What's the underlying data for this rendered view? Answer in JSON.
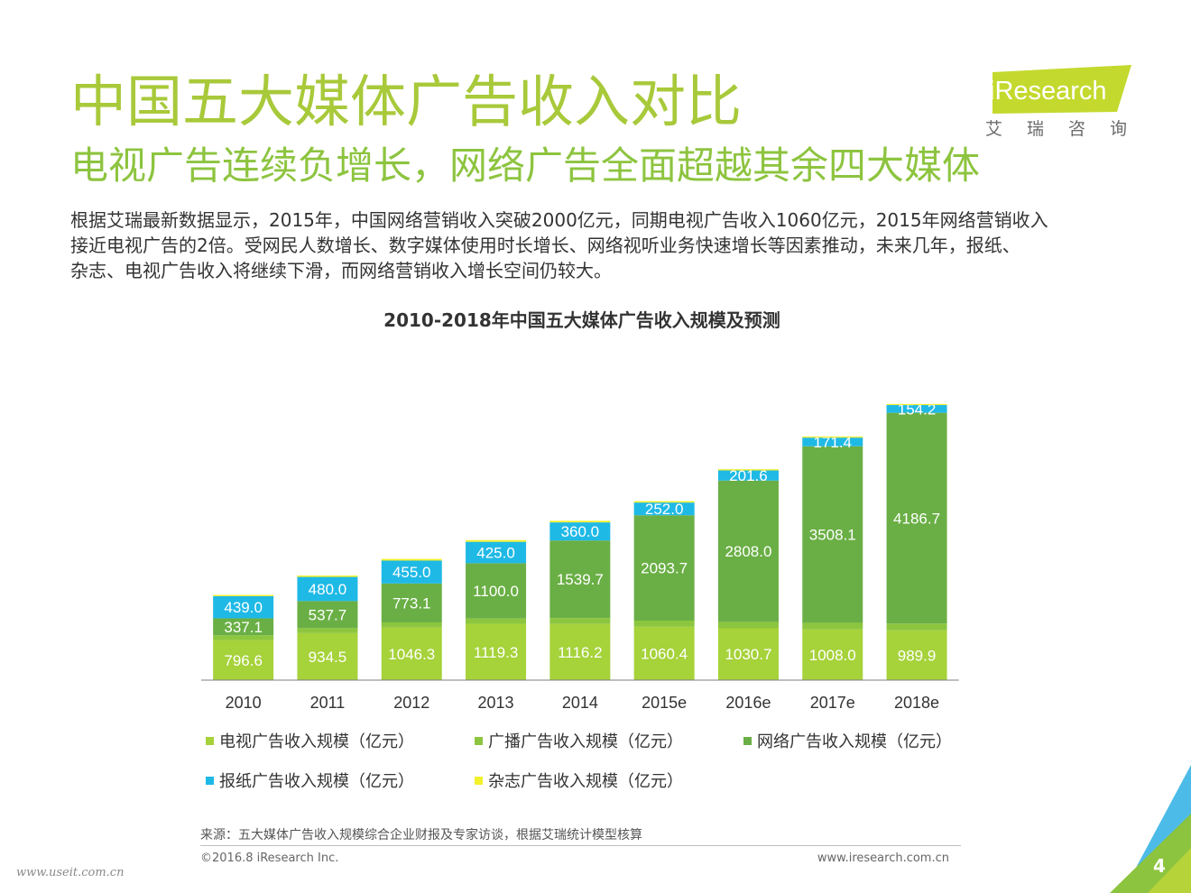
{
  "header": {
    "title": "中国五大媒体广告收入对比",
    "subtitle": "电视广告连续负增长，网络广告全面超越其余四大媒体"
  },
  "logo": {
    "brand": "iResearch",
    "brand_cn": "艾瑞咨询"
  },
  "description": {
    "lines": [
      "根据艾瑞最新数据显示，2015年，中国网络营销收入突破2000亿元，同期电视广告收入1060亿元，2015年网络营销收入",
      "接近电视广告的2倍。受网民人数增长、数字媒体使用时长增长、网络视听业务快速增长等因素推动，未来几年，报纸、",
      "杂志、电视广告收入将继续下滑，而网络营销收入增长空间仍较大。"
    ]
  },
  "chart_data": {
    "type": "bar",
    "stacked": true,
    "title": "2010-2018年中国五大媒体广告收入规模及预测",
    "categories": [
      "2010",
      "2011",
      "2012",
      "2013",
      "2014",
      "2015e",
      "2016e",
      "2017e",
      "2018e"
    ],
    "series": [
      {
        "name": "电视广告收入规模（亿元）",
        "color": "#a6d23a",
        "show_labels": true,
        "values": [
          796.6,
          934.5,
          1046.3,
          1119.3,
          1116.2,
          1060.4,
          1030.7,
          1008.0,
          989.9
        ]
      },
      {
        "name": "广播广告收入规模（亿元）",
        "color": "#8cc63f",
        "show_labels": false,
        "values": [
          94.6,
          98.7,
          101.0,
          104.1,
          118.7,
          122.5,
          126.8,
          131.2,
          135.6
        ]
      },
      {
        "name": "网络广告收入规模（亿元）",
        "color": "#6aaf45",
        "show_labels": true,
        "values": [
          337.1,
          537.7,
          773.1,
          1100.0,
          1539.7,
          2093.7,
          2808.0,
          3508.1,
          4186.7
        ]
      },
      {
        "name": "报纸广告收入规模（亿元）",
        "color": "#1fb9e6",
        "show_labels": true,
        "values": [
          439.0,
          480.0,
          455.0,
          425.0,
          360.0,
          252.0,
          201.6,
          171.4,
          154.2
        ]
      },
      {
        "name": "杂志广告收入规模（亿元）",
        "color": "#f3f02c",
        "show_labels": false,
        "values": [
          25.0,
          28.0,
          33.0,
          35.0,
          32.0,
          28.0,
          25.0,
          23.0,
          21.0
        ]
      }
    ],
    "xlabel": "",
    "ylabel": ""
  },
  "footer": {
    "source": "来源：五大媒体广告收入规模综合企业财报及专家访谈，根据艾瑞统计模型核算",
    "copyright": "©2016.8 iResearch Inc.",
    "website": "www.iresearch.com.cn",
    "page_number": "4",
    "watermark": "www.useit.com.cn"
  },
  "colors": {
    "title": "#a8c93a",
    "subtitle": "#8dc43f",
    "logo_green": "#c4d92e"
  }
}
